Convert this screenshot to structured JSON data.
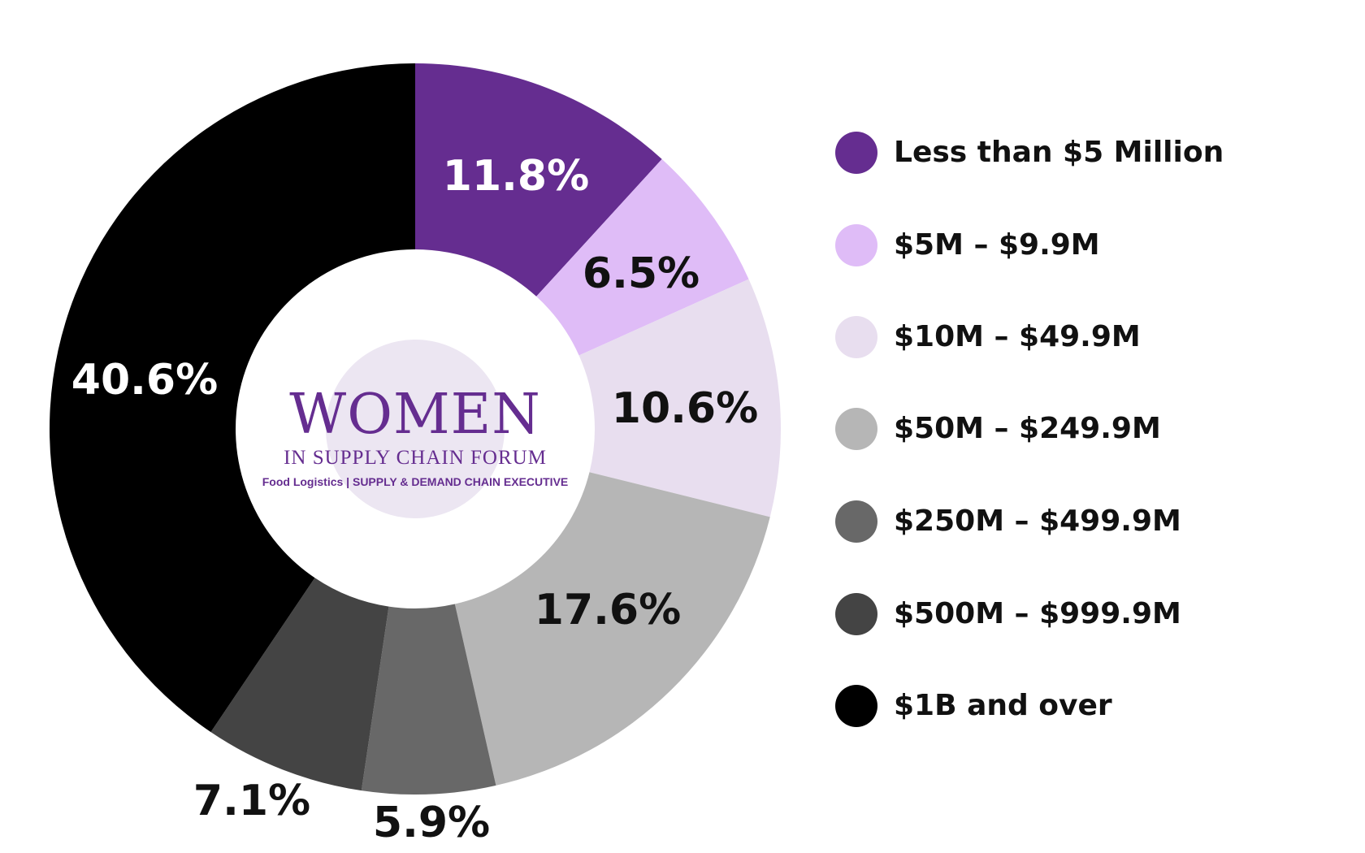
{
  "chart_data": {
    "type": "pie",
    "donut": true,
    "categories": [
      "Less than $5 Million",
      "$5M – $9.9M",
      "$10M – $49.9M",
      "$50M – $249.9M",
      "$250M – $499.9M",
      "$500M – $999.9M",
      "$1B and over"
    ],
    "values": [
      11.8,
      6.5,
      10.6,
      17.6,
      5.9,
      7.1,
      40.6
    ],
    "labels": [
      "11.8%",
      "6.5%",
      "10.6%",
      "17.6%",
      "5.9%",
      "7.1%",
      "40.6%"
    ],
    "colors": [
      "#652d90",
      "#dfbcf7",
      "#e8deef",
      "#b6b6b6",
      "#686868",
      "#444444",
      "#000000"
    ],
    "label_colors": [
      "#ffffff",
      "#111111",
      "#111111",
      "#111111",
      "#111111",
      "#111111",
      "#ffffff"
    ],
    "start": "top",
    "direction": "clockwise",
    "legend_position": "right"
  },
  "logo": {
    "title": "WOMEN",
    "subtitle": "IN SUPPLY CHAIN FORUM",
    "partners": "Food Logistics  |  SUPPLY & DEMAND CHAIN EXECUTIVE"
  }
}
